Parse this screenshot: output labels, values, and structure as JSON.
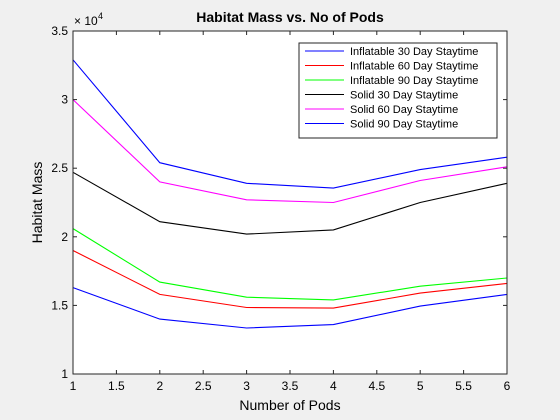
{
  "chart_data": {
    "type": "line",
    "title": "Habitat Mass vs. No of Pods",
    "xlabel": "Number of Pods",
    "ylabel": "Habitat Mass",
    "xlim": [
      1,
      6
    ],
    "ylim": [
      10000,
      35000
    ],
    "exponent_label": "× 10",
    "exponent_power": "4",
    "x_ticks": [
      "1",
      "1.5",
      "2",
      "2.5",
      "3",
      "3.5",
      "4",
      "4.5",
      "5",
      "5.5",
      "6"
    ],
    "y_ticks": [
      "1",
      "1.5",
      "2",
      "2.5",
      "3",
      "3.5"
    ],
    "legend_position": "top-right",
    "grid": false,
    "x": [
      1,
      2,
      3,
      4,
      5,
      6
    ],
    "series": [
      {
        "name": "Inflatable 30 Day Staytime",
        "color": "#0000ff",
        "values": [
          16300,
          14000,
          13350,
          13600,
          14950,
          15800
        ]
      },
      {
        "name": "Inflatable 60 Day Staytime",
        "color": "#ff0000",
        "values": [
          19000,
          15800,
          14850,
          14800,
          15900,
          16600
        ]
      },
      {
        "name": "Inflatable 90 Day Staytime",
        "color": "#00ff00",
        "values": [
          20600,
          16700,
          15600,
          15400,
          16400,
          17000
        ]
      },
      {
        "name": "Solid 30 Day Staytime",
        "color": "#000000",
        "values": [
          24700,
          21100,
          20200,
          20500,
          22500,
          23900
        ]
      },
      {
        "name": "Solid 60 Day Staytime",
        "color": "#ff00ff",
        "values": [
          30000,
          24000,
          22700,
          22500,
          24100,
          25100
        ]
      },
      {
        "name": "Solid 90 Day Staytime",
        "color": "#0000ff",
        "values": [
          32900,
          25400,
          23900,
          23550,
          24900,
          25800
        ]
      }
    ]
  }
}
